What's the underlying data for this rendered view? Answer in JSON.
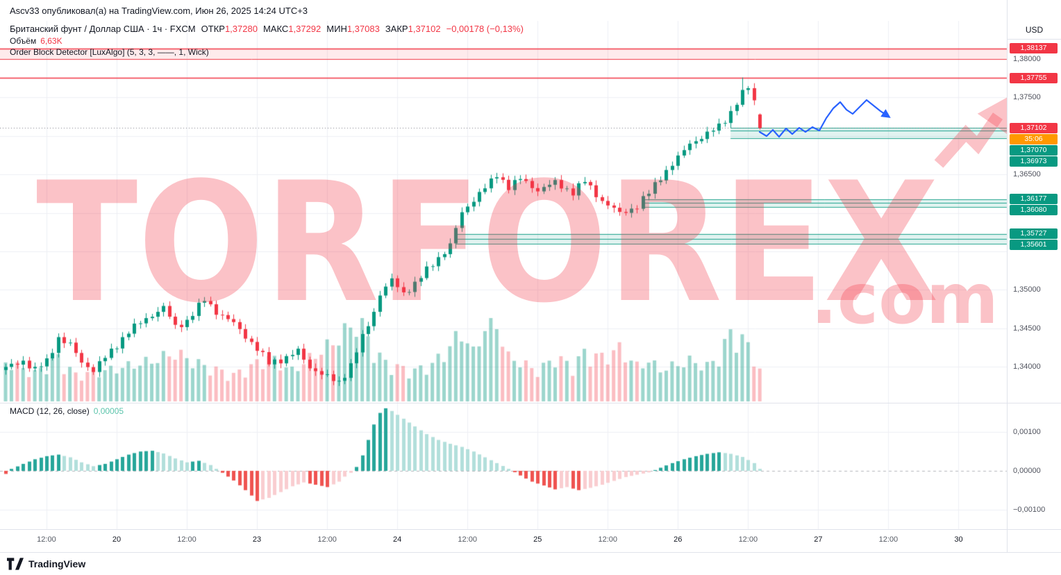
{
  "header": {
    "published": "Ascv33 опубликовал(а) на TradingView.com, Июн 26, 2025 14:24 UTC+3",
    "symbol": "Британский фунт / Доллар США · 1ч · FXCM",
    "ohlc": {
      "open_label": "ОТКР",
      "open": "1,37280",
      "high_label": "МАКС",
      "high": "1,37292",
      "low_label": "МИН",
      "low": "1,37083",
      "close_label": "ЗАКР",
      "close": "1,37102",
      "change": "−0,00178 (−0,13%)"
    },
    "volume_label": "Объём",
    "volume_value": "6,63K",
    "indicator": "Order Block Detector [LuxAlgo] (5, 3, 3, ——, 1, Wick)"
  },
  "macd_legend": {
    "title": "MACD (12, 26, close)",
    "value": "0,00005"
  },
  "watermark": {
    "word": "TORFOREX",
    "suffix": ".com"
  },
  "footer": {
    "brand": "TradingView"
  },
  "price_axis": {
    "currency": "USD",
    "labels": [
      {
        "text": "1,38000",
        "price": 1.38
      },
      {
        "text": "1,37500",
        "price": 1.375
      },
      {
        "text": "1,36500",
        "price": 1.365
      },
      {
        "text": "1,35000",
        "price": 1.35
      },
      {
        "text": "1,34500",
        "price": 1.345
      },
      {
        "text": "1,34000",
        "price": 1.34
      }
    ],
    "badges": [
      {
        "text": "1,38137",
        "price": 1.38137,
        "color": "#f23645"
      },
      {
        "text": "1,37755",
        "price": 1.37755,
        "color": "#f23645"
      },
      {
        "text": "1,37102",
        "price": 1.37102,
        "color": "#f23645"
      },
      {
        "text": "35:06",
        "color": "#ff9800"
      },
      {
        "text": "1,37070",
        "price": 1.3707,
        "color": "#089981"
      },
      {
        "text": "1,36973",
        "price": 1.36973,
        "color": "#089981"
      },
      {
        "text": "1,36177",
        "price": 1.36177,
        "color": "#089981"
      },
      {
        "text": "1,36080",
        "price": 1.3608,
        "color": "#089981"
      },
      {
        "text": "1,35727",
        "price": 1.35727,
        "color": "#089981"
      },
      {
        "text": "1,35601",
        "price": 1.35601,
        "color": "#089981"
      }
    ],
    "macd_labels": [
      {
        "text": "0,00100",
        "value": 0.001
      },
      {
        "text": "0,00000",
        "value": 0
      },
      {
        "text": "−0,00100",
        "value": -0.001
      }
    ]
  },
  "time_axis": {
    "ticks": [
      {
        "label": "12:00",
        "i": 7
      },
      {
        "label": "20",
        "i": 19,
        "major": true
      },
      {
        "label": "12:00",
        "i": 31
      },
      {
        "label": "23",
        "i": 43,
        "major": true
      },
      {
        "label": "12:00",
        "i": 55
      },
      {
        "label": "24",
        "i": 67,
        "major": true
      },
      {
        "label": "12:00",
        "i": 79
      },
      {
        "label": "25",
        "i": 91,
        "major": true
      },
      {
        "label": "12:00",
        "i": 103
      },
      {
        "label": "26",
        "i": 115,
        "major": true
      },
      {
        "label": "12:00",
        "i": 127
      },
      {
        "label": "27",
        "i": 139,
        "major": true
      },
      {
        "label": "12:00",
        "i": 151
      },
      {
        "label": "30",
        "i": 163,
        "major": true
      }
    ]
  },
  "colors": {
    "up": "#089981",
    "down": "#f23645",
    "vol_up": "rgba(8,153,129,0.40)",
    "vol_down": "rgba(242,54,69,0.33)",
    "macd_up": "#26a69a",
    "macd_up_light": "#b2dfdb",
    "macd_down": "#ef5350",
    "macd_down_light": "#f9cdd0",
    "grid": "#eef0f5",
    "border": "#e0e3eb",
    "zone_red_fill": "rgba(242,54,69,0.10)",
    "zone_green_fill": "rgba(8,153,129,0.12)",
    "zone_green_line": "rgba(8,153,129,0.9)",
    "current_price_line": "#787b86",
    "accent_blue": "#2962ff",
    "watermark_red": "rgba(242,54,69,0.30)"
  },
  "chart_data": {
    "type": "candlestick",
    "pair": "GBP/USD",
    "interval": "1h",
    "venue": "FXCM",
    "start_time": "2025-06-19 05:00",
    "candle_count": 130,
    "ohlc_current": {
      "open": 1.3728,
      "high": 1.37292,
      "low": 1.37083,
      "close": 1.37102
    },
    "current_price": 1.37102,
    "countdown": "35:06",
    "macd_current": 5e-05,
    "session_high_index": 126,
    "session_high": 1.3776,
    "price_axis_gridlines": [
      1.38,
      1.375,
      1.37,
      1.365,
      1.36,
      1.355,
      1.35,
      1.345,
      1.34
    ],
    "macd_axis_gridlines": [
      0.001,
      -0.001
    ],
    "supply_zone": {
      "top": 1.38137,
      "bottom": 1.38
    },
    "resistance_line": 1.37755,
    "demand_zones": [
      {
        "top": 1.37102,
        "mid": 1.3707,
        "bottom": 1.36973,
        "start_index": 124
      },
      {
        "top": 1.36177,
        "mid": 1.36128,
        "bottom": 1.3608,
        "start_index": 109
      },
      {
        "top": 1.35727,
        "mid": 1.35664,
        "bottom": 1.35601,
        "start_index": 77
      }
    ],
    "close_waypoints": [
      [
        0,
        1.3398
      ],
      [
        3,
        1.3408
      ],
      [
        5,
        1.3396
      ],
      [
        7,
        1.3407
      ],
      [
        9,
        1.3438
      ],
      [
        11,
        1.3428
      ],
      [
        13,
        1.3406
      ],
      [
        15,
        1.3396
      ],
      [
        18,
        1.342
      ],
      [
        21,
        1.3446
      ],
      [
        25,
        1.3468
      ],
      [
        27,
        1.3477
      ],
      [
        29,
        1.3452
      ],
      [
        31,
        1.346
      ],
      [
        34,
        1.3487
      ],
      [
        36,
        1.3472
      ],
      [
        39,
        1.3456
      ],
      [
        42,
        1.3432
      ],
      [
        45,
        1.3405
      ],
      [
        48,
        1.3412
      ],
      [
        50,
        1.342
      ],
      [
        52,
        1.34
      ],
      [
        55,
        1.3386
      ],
      [
        57,
        1.338
      ],
      [
        59,
        1.3402
      ],
      [
        61,
        1.3438
      ],
      [
        63,
        1.3472
      ],
      [
        64,
        1.3495
      ],
      [
        66,
        1.3512
      ],
      [
        68,
        1.3496
      ],
      [
        70,
        1.3508
      ],
      [
        73,
        1.3534
      ],
      [
        76,
        1.3558
      ],
      [
        78,
        1.36
      ],
      [
        80,
        1.3618
      ],
      [
        83,
        1.364
      ],
      [
        84,
        1.365
      ],
      [
        86,
        1.3634
      ],
      [
        88,
        1.3644
      ],
      [
        91,
        1.363
      ],
      [
        94,
        1.3639
      ],
      [
        97,
        1.3627
      ],
      [
        99,
        1.3641
      ],
      [
        102,
        1.3616
      ],
      [
        105,
        1.3599
      ],
      [
        108,
        1.3609
      ],
      [
        110,
        1.3626
      ],
      [
        112,
        1.3647
      ],
      [
        115,
        1.3671
      ],
      [
        117,
        1.3691
      ],
      [
        120,
        1.3702
      ],
      [
        122,
        1.3713
      ],
      [
        124,
        1.3731
      ],
      [
        126,
        1.3755
      ],
      [
        127,
        1.3763
      ],
      [
        128,
        1.3746
      ],
      [
        129,
        1.371
      ]
    ],
    "volume_waypoints": [
      [
        0,
        0.45
      ],
      [
        5,
        0.32
      ],
      [
        9,
        0.5
      ],
      [
        12,
        0.3
      ],
      [
        18,
        0.36
      ],
      [
        25,
        0.46
      ],
      [
        29,
        0.55
      ],
      [
        34,
        0.4
      ],
      [
        39,
        0.3
      ],
      [
        45,
        0.5
      ],
      [
        49,
        0.35
      ],
      [
        55,
        0.62
      ],
      [
        57,
        0.72
      ],
      [
        59,
        0.85
      ],
      [
        61,
        0.9
      ],
      [
        63,
        0.55
      ],
      [
        66,
        0.4
      ],
      [
        70,
        0.35
      ],
      [
        73,
        0.42
      ],
      [
        76,
        0.62
      ],
      [
        78,
        0.8
      ],
      [
        80,
        0.55
      ],
      [
        83,
        1.0
      ],
      [
        84,
        0.88
      ],
      [
        86,
        0.5
      ],
      [
        88,
        0.45
      ],
      [
        91,
        0.34
      ],
      [
        94,
        0.5
      ],
      [
        97,
        0.4
      ],
      [
        99,
        0.55
      ],
      [
        102,
        0.5
      ],
      [
        105,
        0.6
      ],
      [
        108,
        0.4
      ],
      [
        110,
        0.46
      ],
      [
        112,
        0.36
      ],
      [
        115,
        0.42
      ],
      [
        117,
        0.46
      ],
      [
        120,
        0.4
      ],
      [
        122,
        0.5
      ],
      [
        124,
        0.78
      ],
      [
        126,
        0.7
      ],
      [
        128,
        0.55
      ],
      [
        129,
        0.35
      ]
    ],
    "macd_waypoints": [
      [
        0,
        -8e-05
      ],
      [
        1,
        5e-05
      ],
      [
        3,
        0.00018
      ],
      [
        5,
        0.0003
      ],
      [
        7,
        0.00038
      ],
      [
        9,
        0.00042
      ],
      [
        11,
        0.00035
      ],
      [
        13,
        0.00022
      ],
      [
        15,
        0.00012
      ],
      [
        17,
        0.00018
      ],
      [
        19,
        0.0003
      ],
      [
        21,
        0.00042
      ],
      [
        23,
        0.0005
      ],
      [
        25,
        0.00052
      ],
      [
        27,
        0.00045
      ],
      [
        29,
        0.00032
      ],
      [
        31,
        0.00022
      ],
      [
        33,
        0.00026
      ],
      [
        35,
        0.00015
      ],
      [
        37,
        -5e-05
      ],
      [
        39,
        -0.00025
      ],
      [
        41,
        -0.0005
      ],
      [
        43,
        -0.00078
      ],
      [
        45,
        -0.0007
      ],
      [
        47,
        -0.00055
      ],
      [
        49,
        -0.0004
      ],
      [
        51,
        -0.0003
      ],
      [
        53,
        -0.00036
      ],
      [
        55,
        -0.00042
      ],
      [
        57,
        -0.00028
      ],
      [
        58,
        -0.00015
      ],
      [
        59,
        -5e-05
      ],
      [
        60,
        0.0001
      ],
      [
        61,
        0.0004
      ],
      [
        62,
        0.0008
      ],
      [
        63,
        0.0012
      ],
      [
        64,
        0.0015
      ],
      [
        65,
        0.00162
      ],
      [
        66,
        0.00155
      ],
      [
        68,
        0.00135
      ],
      [
        70,
        0.00115
      ],
      [
        72,
        0.00095
      ],
      [
        74,
        0.0008
      ],
      [
        76,
        0.0007
      ],
      [
        78,
        0.00062
      ],
      [
        80,
        0.0005
      ],
      [
        82,
        0.00035
      ],
      [
        84,
        0.0002
      ],
      [
        86,
        5e-05
      ],
      [
        88,
        -0.00012
      ],
      [
        90,
        -0.00028
      ],
      [
        92,
        -0.00038
      ],
      [
        94,
        -0.00048
      ],
      [
        96,
        -0.00042
      ],
      [
        98,
        -0.0005
      ],
      [
        100,
        -0.00044
      ],
      [
        102,
        -0.00036
      ],
      [
        104,
        -0.00026
      ],
      [
        106,
        -0.00016
      ],
      [
        108,
        -0.0001
      ],
      [
        110,
        -4e-05
      ],
      [
        112,
        8e-05
      ],
      [
        114,
        0.0002
      ],
      [
        116,
        0.0003
      ],
      [
        118,
        0.00038
      ],
      [
        120,
        0.00044
      ],
      [
        122,
        0.00048
      ],
      [
        124,
        0.00044
      ],
      [
        126,
        0.00036
      ],
      [
        128,
        0.0002
      ],
      [
        129,
        5e-05
      ]
    ],
    "arrow_drawing": {
      "color": "#2962ff",
      "points": [
        [
          1094,
          190
        ],
        [
          1104,
          196
        ],
        [
          1113,
          187
        ],
        [
          1122,
          197
        ],
        [
          1132,
          185
        ],
        [
          1141,
          193
        ],
        [
          1151,
          184
        ],
        [
          1160,
          190
        ],
        [
          1170,
          183
        ],
        [
          1180,
          188
        ],
        [
          1190,
          170
        ],
        [
          1200,
          156
        ],
        [
          1210,
          147
        ],
        [
          1219,
          158
        ],
        [
          1228,
          164
        ],
        [
          1238,
          154
        ],
        [
          1248,
          144
        ],
        [
          1258,
          152
        ],
        [
          1268,
          160
        ],
        [
          1280,
          168
        ]
      ]
    }
  }
}
